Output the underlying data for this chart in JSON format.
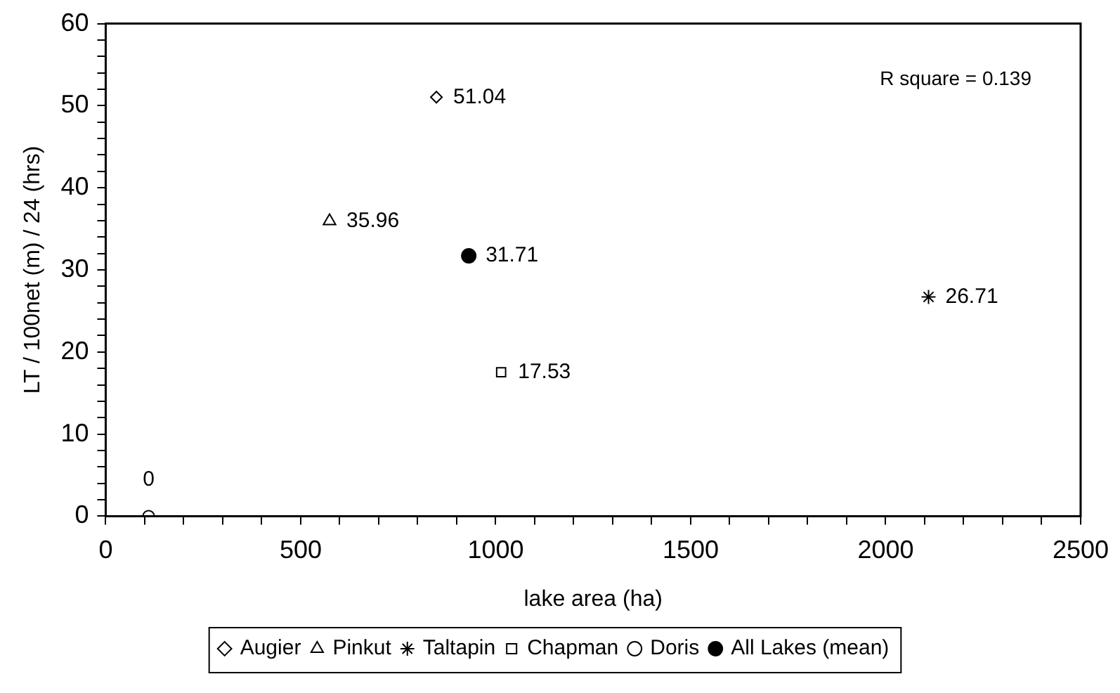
{
  "chart_data": {
    "type": "scatter",
    "xlabel": "lake area (ha)",
    "ylabel": "LT / 100net (m) / 24 (hrs)",
    "xlim": [
      0,
      2500
    ],
    "xticks": [
      0,
      {
        "value": 100,
        "label": null
      },
      {
        "value": 200,
        "label": null
      },
      {
        "value": 300,
        "label": null
      },
      {
        "value": 400,
        "label": null
      },
      500,
      {
        "value": 600,
        "label": null
      },
      {
        "value": 700,
        "label": null
      },
      {
        "value": 800,
        "label": null
      },
      {
        "value": 900,
        "label": null
      },
      1000,
      {
        "value": 1100,
        "label": null
      },
      {
        "value": 1200,
        "label": null
      },
      {
        "value": 1300,
        "label": null
      },
      {
        "value": 1400,
        "label": null
      },
      1500,
      {
        "value": 1600,
        "label": null
      },
      {
        "value": 1700,
        "label": null
      },
      {
        "value": 1800,
        "label": null
      },
      {
        "value": 1900,
        "label": null
      },
      2000,
      {
        "value": 2100,
        "label": null
      },
      {
        "value": 2200,
        "label": null
      },
      {
        "value": 2300,
        "label": null
      },
      {
        "value": 2400,
        "label": null
      },
      2500
    ],
    "ylim": [
      0,
      60
    ],
    "yticks": [
      0,
      {
        "value": 2,
        "label": null
      },
      {
        "value": 4,
        "label": null
      },
      {
        "value": 6,
        "label": null
      },
      {
        "value": 8,
        "label": null
      },
      10,
      {
        "value": 12,
        "label": null
      },
      {
        "value": 14,
        "label": null
      },
      {
        "value": 16,
        "label": null
      },
      {
        "value": 18,
        "label": null
      },
      20,
      {
        "value": 22,
        "label": null
      },
      {
        "value": 24,
        "label": null
      },
      {
        "value": 26,
        "label": null
      },
      {
        "value": 28,
        "label": null
      },
      30,
      {
        "value": 32,
        "label": null
      },
      {
        "value": 34,
        "label": null
      },
      {
        "value": 36,
        "label": null
      },
      {
        "value": 38,
        "label": null
      },
      40,
      {
        "value": 42,
        "label": null
      },
      {
        "value": 44,
        "label": null
      },
      {
        "value": 46,
        "label": null
      },
      {
        "value": 48,
        "label": null
      },
      50,
      {
        "value": 52,
        "label": null
      },
      {
        "value": 54,
        "label": null
      },
      {
        "value": 56,
        "label": null
      },
      {
        "value": 58,
        "label": null
      },
      60
    ],
    "grid": false,
    "legend": "bottom",
    "data_labels": true,
    "annotations": [
      "R square = 0.139"
    ],
    "series": [
      {
        "name": "Augier",
        "color": "#000000",
        "marker": "diamond",
        "x": [
          848
        ],
        "values": [
          51.04
        ]
      },
      {
        "name": "Pinkut",
        "color": "#000000",
        "marker": "triangle",
        "x": [
          574
        ],
        "values": [
          35.96
        ]
      },
      {
        "name": "Taltapin",
        "color": "#000000",
        "marker": "cross",
        "x": [
          2110
        ],
        "values": [
          26.71
        ]
      },
      {
        "name": "Chapman",
        "color": "#000000",
        "marker": "square",
        "x": [
          1014
        ],
        "values": [
          17.53
        ]
      },
      {
        "name": "Doris",
        "color": "#000000",
        "marker": "circle",
        "x": [
          110
        ],
        "values": [
          0
        ]
      },
      {
        "name": "All Lakes (mean)",
        "color": "#000000",
        "marker": "filled-circle",
        "x": [
          931
        ],
        "values": [
          31.71
        ]
      }
    ]
  }
}
